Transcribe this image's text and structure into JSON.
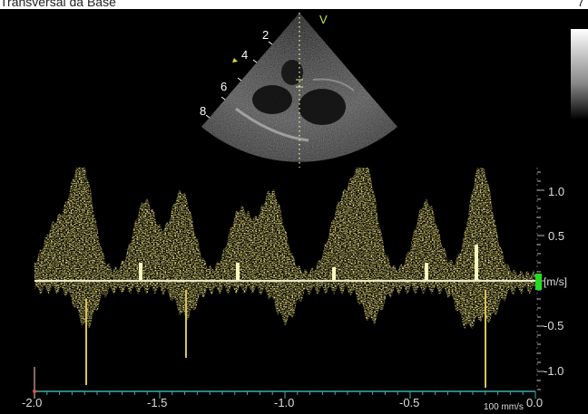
{
  "header": {
    "title": "Transversal da Base",
    "right_text": "7"
  },
  "sector": {
    "mode_label": "V",
    "depth_marks": [
      "2",
      "4",
      "6",
      "8"
    ]
  },
  "doppler": {
    "velocity_scale": [
      "1.0",
      "0.5",
      "-0.5",
      "-1.0"
    ],
    "velocity_unit": "[m/s]",
    "time_scale": [
      "-2.0",
      "-1.5",
      "-1.0",
      "-0.5",
      "0.0"
    ],
    "sweep_speed": "100 mm/s"
  },
  "colors": {
    "doppler_trace": "#e8d23a",
    "baseline": "#e8e8c8",
    "time_axis": "#3bb0a8",
    "marker": "#22dd22"
  }
}
